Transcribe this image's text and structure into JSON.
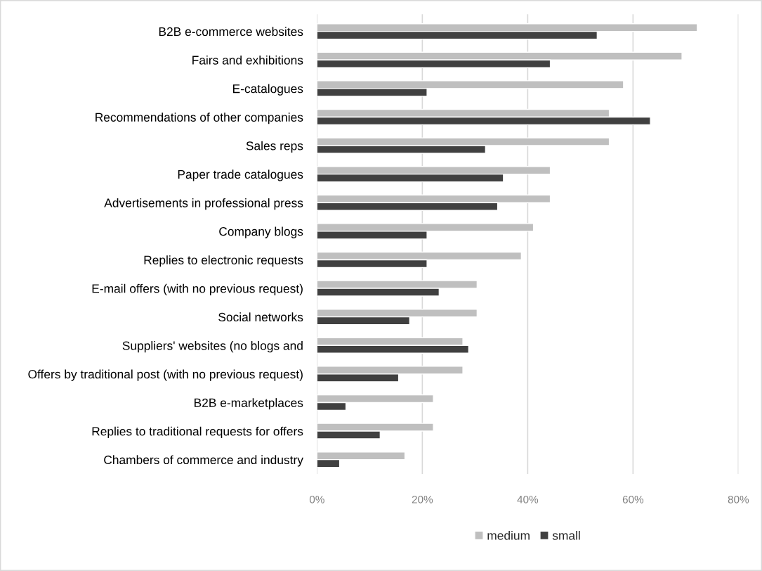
{
  "chart_data": {
    "type": "bar",
    "orientation": "horizontal",
    "categories": [
      "B2B e-commerce websites",
      "Fairs and exhibitions",
      "E-catalogues",
      "Recommendations of other companies",
      "Sales reps",
      "Paper trade catalogues",
      "Advertisements in professional press",
      "Company blogs",
      "Replies to electronic requests",
      "E-mail offers (with no previous request)",
      "Social networks",
      "Suppliers' websites (no blogs and",
      "Offers by traditional post (with no previous request)",
      "B2B e-marketplaces",
      "Replies to traditional requests for offers",
      "Chambers of commerce and industry"
    ],
    "series": [
      {
        "name": "medium",
        "color": "#bfbfbf",
        "values": [
          72.2,
          69.3,
          58.2,
          55.5,
          55.5,
          44.3,
          44.3,
          41.1,
          38.8,
          30.4,
          30.4,
          27.7,
          27.7,
          22.1,
          22.1,
          16.7
        ]
      },
      {
        "name": "small",
        "color": "#404040",
        "values": [
          53.2,
          44.3,
          20.9,
          63.3,
          32.0,
          35.4,
          34.3,
          20.9,
          20.9,
          23.2,
          17.6,
          28.8,
          15.5,
          5.5,
          12.0,
          4.3
        ]
      }
    ],
    "xlim": [
      0,
      80
    ],
    "xticks": [
      {
        "value": 0,
        "label": "0%"
      },
      {
        "value": 20,
        "label": "20%"
      },
      {
        "value": 40,
        "label": "40%"
      },
      {
        "value": 60,
        "label": "60%"
      },
      {
        "value": 80,
        "label": "80%"
      }
    ],
    "grid": "x",
    "legend": "bottom"
  }
}
